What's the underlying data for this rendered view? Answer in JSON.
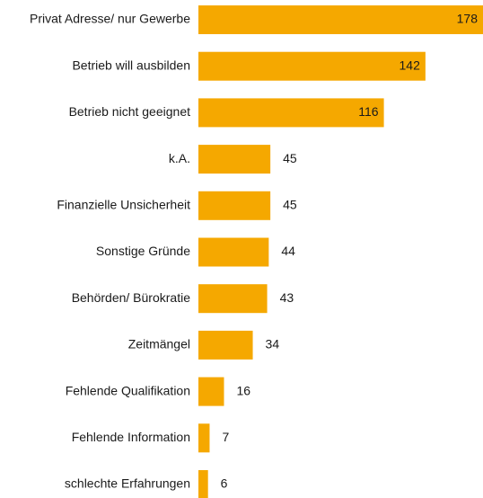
{
  "chart_data": {
    "type": "bar",
    "orientation": "horizontal",
    "color": "#f5a800",
    "categories": [
      "Privat Adresse/ nur Gewerbe",
      "Betrieb will ausbilden",
      "Betrieb nicht geeignet",
      "k.A.",
      "Finanzielle Unsicherheit",
      "Sonstige Gründe",
      "Behörden/ Bürokratie",
      "Zeitmängel",
      "Fehlende Qualifikation",
      "Fehlende Information",
      "schlechte Erfahrungen"
    ],
    "values": [
      178,
      142,
      116,
      45,
      45,
      44,
      43,
      34,
      16,
      7,
      6
    ]
  }
}
